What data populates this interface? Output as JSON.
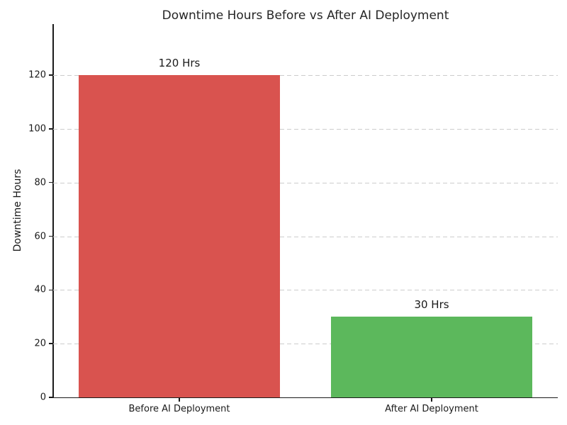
{
  "chart_data": {
    "type": "bar",
    "title": "Downtime Hours Before vs After AI Deployment",
    "xlabel": "",
    "ylabel": "Downtime Hours",
    "categories": [
      "Before AI Deployment",
      "After AI Deployment"
    ],
    "values": [
      120,
      30
    ],
    "value_labels": [
      "120 Hrs",
      "30 Hrs"
    ],
    "bar_colors": [
      "#d9534f",
      "#5cb85c"
    ],
    "yticks": [
      0,
      20,
      40,
      60,
      80,
      100,
      120
    ],
    "ylim": [
      0,
      139
    ],
    "bar_width_fraction": 0.8,
    "grid": "horizontal-dashed",
    "legend": "none",
    "colors": {
      "title": "#262626",
      "axis": "#1a1a1a",
      "grid": "#cccccc",
      "background": "#ffffff"
    }
  }
}
